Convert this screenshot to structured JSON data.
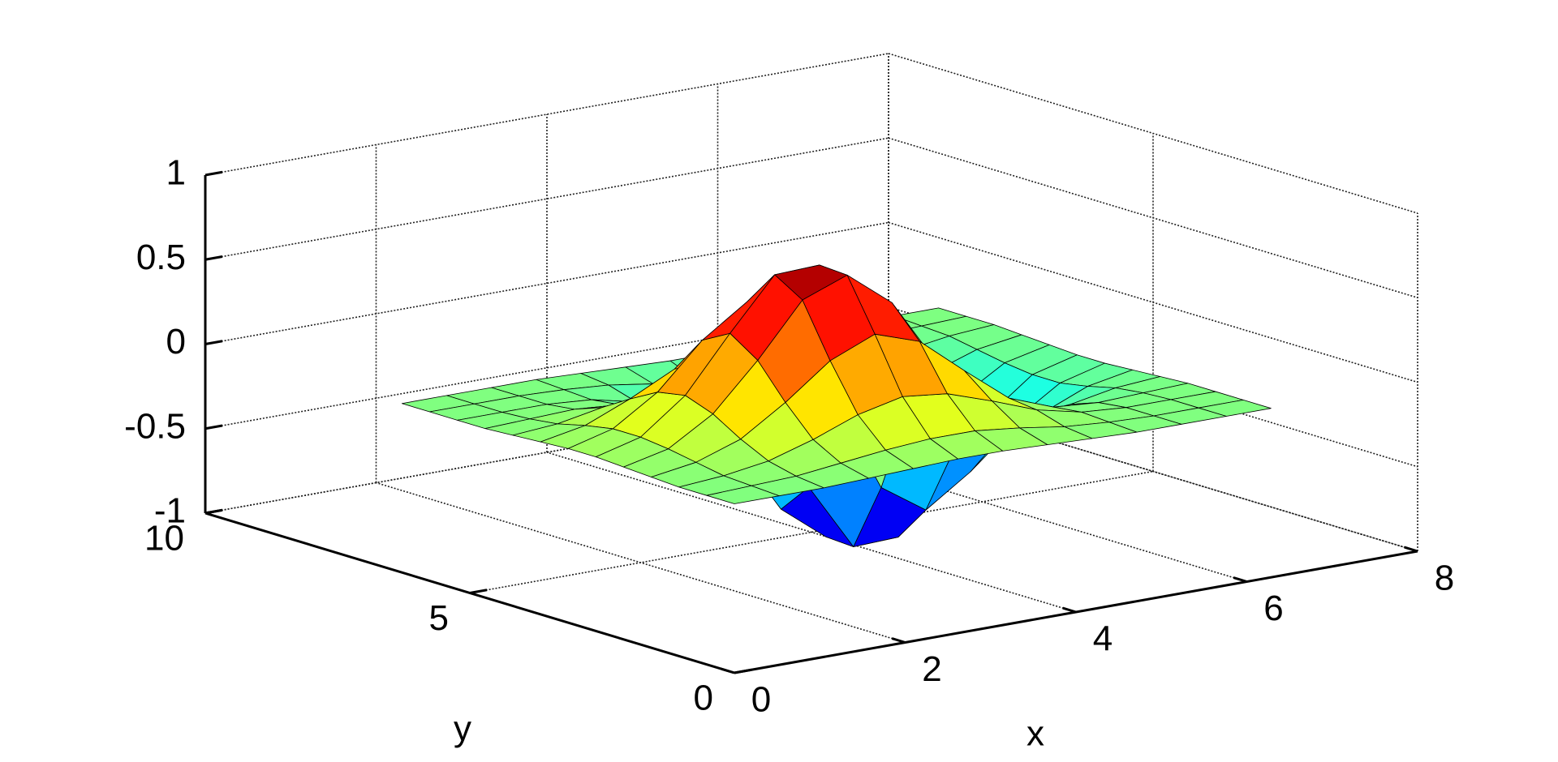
{
  "chart_data": {
    "type": "surface",
    "xlabel": "x",
    "ylabel": "y",
    "xlim": [
      0,
      8
    ],
    "ylim": [
      0,
      10
    ],
    "zlim": [
      -1,
      1
    ],
    "xticks": [
      0,
      2,
      4,
      6,
      8
    ],
    "yticks": [
      0,
      5,
      10
    ],
    "zticks": [
      -1,
      -0.5,
      0,
      0.5,
      1
    ],
    "grid": true,
    "colormap": "jet",
    "edgecolor": "#000000",
    "x": [
      0,
      0.5236,
      1.0472,
      1.5708,
      2.0944,
      2.618,
      3.1416,
      3.6652,
      4.1888,
      4.7124,
      5.236,
      5.7596,
      6.2832
    ],
    "y": [
      0,
      0.5236,
      1.0472,
      1.5708,
      2.0944,
      2.618,
      3.1416,
      3.6652,
      4.1888,
      4.7124,
      5.236,
      5.7596,
      6.2832
    ],
    "z": [
      [
        0,
        0,
        0,
        0.01,
        0.02,
        0.03,
        0.03,
        0.02,
        0.01,
        0,
        0,
        0,
        0
      ],
      [
        0,
        0.01,
        0.02,
        0.05,
        0.08,
        0.1,
        0.1,
        0.07,
        0.03,
        0.01,
        0,
        0,
        0
      ],
      [
        0,
        0.02,
        0.06,
        0.14,
        0.24,
        0.3,
        0.27,
        0.18,
        0.08,
        0.02,
        0,
        0,
        0
      ],
      [
        0.01,
        0.05,
        0.14,
        0.31,
        0.51,
        0.62,
        0.53,
        0.31,
        0.1,
        0,
        -0.02,
        -0.01,
        0
      ],
      [
        0.02,
        0.08,
        0.24,
        0.51,
        0.82,
        0.92,
        0.71,
        0.31,
        0,
        -0.1,
        -0.08,
        -0.03,
        -0.01
      ],
      [
        0.03,
        0.1,
        0.3,
        0.62,
        0.92,
        0.93,
        0.53,
        0,
        -0.31,
        -0.31,
        -0.18,
        -0.07,
        -0.02
      ],
      [
        0.03,
        0.1,
        0.27,
        0.53,
        0.71,
        0.53,
        0,
        -0.53,
        -0.71,
        -0.53,
        -0.27,
        -0.1,
        -0.03
      ],
      [
        0.02,
        0.07,
        0.18,
        0.31,
        0.31,
        0,
        -0.53,
        -0.93,
        -0.92,
        -0.62,
        -0.3,
        -0.1,
        -0.03
      ],
      [
        0.01,
        0.03,
        0.08,
        0.1,
        0,
        -0.31,
        -0.71,
        -0.92,
        -0.82,
        -0.51,
        -0.24,
        -0.08,
        -0.02
      ],
      [
        0,
        0.01,
        0.02,
        0,
        -0.1,
        -0.31,
        -0.53,
        -0.62,
        -0.51,
        -0.31,
        -0.14,
        -0.05,
        -0.01
      ],
      [
        0,
        0,
        0,
        -0.02,
        -0.08,
        -0.18,
        -0.27,
        -0.3,
        -0.24,
        -0.14,
        -0.06,
        -0.02,
        0
      ],
      [
        0,
        0,
        0,
        -0.01,
        -0.03,
        -0.07,
        -0.1,
        -0.1,
        -0.08,
        -0.05,
        -0.02,
        -0.01,
        0
      ],
      [
        0,
        0,
        0,
        0,
        -0.01,
        -0.02,
        -0.03,
        -0.03,
        -0.02,
        -0.01,
        0,
        0,
        0
      ]
    ]
  }
}
